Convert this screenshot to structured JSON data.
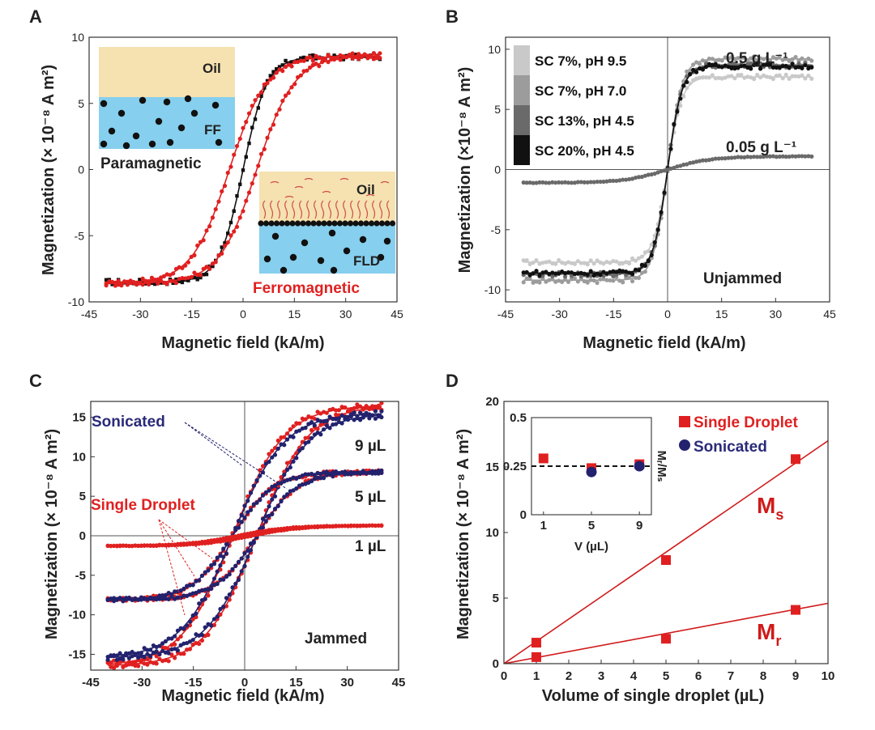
{
  "panels": {
    "A": {
      "label": "A",
      "ylabel": "Magnetization (× 10⁻⁸ A m²)",
      "xlabel": "Magnetic field (kA/m)",
      "inset_top": {
        "oil": "Oil",
        "ff": "FF",
        "caption": "Paramagnetic"
      },
      "inset_bottom": {
        "oil": "Oil",
        "fld": "FLD",
        "caption": "Ferromagnetic"
      }
    },
    "B": {
      "label": "B",
      "ylabel": "Magnetization (×10⁻⁸ A m²)",
      "xlabel": "Magnetic field (kA/m)",
      "legend": [
        "SC 7%, pH 9.5",
        "SC 7%, pH 7.0",
        "SC 13%, pH 4.5",
        "SC 20%, pH 4.5"
      ],
      "ann_high": "0.5 g L⁻¹",
      "ann_low": "0.05 g L⁻¹",
      "state": "Unjammed"
    },
    "C": {
      "label": "C",
      "ylabel": "Magnetization (× 10⁻⁸ A m²)",
      "xlabel": "Magnetic field (kA/m)",
      "sonicated": "Sonicated",
      "single": "Single Droplet",
      "v9": "9 µL",
      "v5": "5 µL",
      "v1": "1 µL",
      "state": "Jammed"
    },
    "D": {
      "label": "D",
      "ylabel": "Magnetization (× 10⁻⁸ A m²)",
      "xlabel": "Volume of single droplet (µL)",
      "legend_single": "Single Droplet",
      "legend_sonicated": "Sonicated",
      "ms_label": "M",
      "ms_sub": "s",
      "mr_label": "M",
      "mr_sub": "r",
      "inset_xlabel": "V (µL)",
      "inset_ylabel": "Mᵣ/Mₛ"
    }
  },
  "colors": {
    "red": "#e02020",
    "black": "#111111",
    "navy": "#22226e",
    "light": "#c9c9c9",
    "mid": "#9c9c9c",
    "dark": "#6a6a6a",
    "oil": "#f5e2b0",
    "water": "#86cfee"
  },
  "chart_data": [
    {
      "panel": "A",
      "type": "line",
      "title": "",
      "xlabel": "Magnetic field (kA/m)",
      "ylabel": "Magnetization (× 10⁻⁸ A m²)",
      "xlim": [
        -45,
        45
      ],
      "ylim": [
        -10,
        10
      ],
      "xticks": [
        -45,
        -30,
        -15,
        0,
        15,
        30,
        45
      ],
      "yticks": [
        -10,
        -5,
        0,
        5,
        10
      ],
      "series": [
        {
          "name": "FF (paramagnetic)",
          "color": "#111111",
          "Ms": 8.5,
          "width": 7,
          "coercive": 0
        },
        {
          "name": "FLD (ferromagnetic)",
          "color": "#e02020",
          "Ms": 8.6,
          "width": 11,
          "coercive": 4
        }
      ]
    },
    {
      "panel": "B",
      "type": "line",
      "xlabel": "Magnetic field (kA/m)",
      "ylabel": "Magnetization (×10⁻⁸ A m²)",
      "xlim": [
        -45,
        45
      ],
      "ylim": [
        -11,
        11
      ],
      "xticks": [
        -45,
        -30,
        -15,
        0,
        15,
        30,
        45
      ],
      "yticks": [
        -10,
        -5,
        0,
        5,
        10
      ],
      "series": [
        {
          "name": "SC 7%, pH 9.5",
          "color": "#c9c9c9",
          "Ms": 7.7,
          "width": 4
        },
        {
          "name": "SC 7%, pH 7.0",
          "color": "#9c9c9c",
          "Ms": 9.2,
          "width": 4
        },
        {
          "name": "SC 13%, pH 4.5",
          "color": "#6a6a6a",
          "Ms": 8.7,
          "width": 4
        },
        {
          "name": "SC 20%, pH 4.5",
          "color": "#111111",
          "Ms": 8.6,
          "width": 4
        },
        {
          "name": "0.05 g L⁻¹",
          "color": "#6a6a6a",
          "Ms": 1.1,
          "width": 12
        }
      ]
    },
    {
      "panel": "C",
      "type": "line",
      "xlabel": "Magnetic field (kA/m)",
      "ylabel": "Magnetization (× 10⁻⁸ A m²)",
      "xlim": [
        -45,
        45
      ],
      "ylim": [
        -17,
        17
      ],
      "xticks": [
        -45,
        -30,
        -15,
        0,
        15,
        30,
        45
      ],
      "yticks": [
        -15,
        -10,
        -5,
        0,
        5,
        10,
        15
      ],
      "series": [
        {
          "name": "Single Droplet 9 µL",
          "color": "#e02020",
          "Ms": 16.5,
          "width": 15,
          "coercive": 3.5
        },
        {
          "name": "Sonicated 9 µL",
          "color": "#22226e",
          "Ms": 15.5,
          "width": 15,
          "coercive": 3.5
        },
        {
          "name": "Single Droplet 5 µL",
          "color": "#e02020",
          "Ms": 8.1,
          "width": 12,
          "coercive": 3.5
        },
        {
          "name": "Sonicated 5 µL",
          "color": "#22226e",
          "Ms": 8.1,
          "width": 12,
          "coercive": 3.5
        },
        {
          "name": "Single Droplet 1 µL",
          "color": "#e02020",
          "Ms": 1.3,
          "width": 15,
          "coercive": 2
        }
      ]
    },
    {
      "panel": "D",
      "type": "scatter",
      "xlabel": "Volume of single droplet (µL)",
      "ylabel": "Magnetization (× 10⁻⁸ A m²)",
      "xlim": [
        0,
        10
      ],
      "ylim": [
        0,
        20
      ],
      "xticks": [
        0,
        1,
        2,
        3,
        4,
        5,
        6,
        7,
        8,
        9,
        10
      ],
      "yticks": [
        0,
        5,
        10,
        15,
        20
      ],
      "series": [
        {
          "name": "Ms",
          "x": [
            1,
            5,
            9
          ],
          "y": [
            1.6,
            7.9,
            15.6
          ],
          "fit_slope": 1.7
        },
        {
          "name": "Mr",
          "x": [
            1,
            5,
            9
          ],
          "y": [
            0.5,
            1.9,
            4.1
          ],
          "fit_slope": 0.46
        }
      ],
      "inset": {
        "xlim": [
          0,
          10
        ],
        "ylim": [
          0,
          0.5
        ],
        "xticks": [
          1,
          5,
          9
        ],
        "yticks": [
          0,
          0.25,
          0.5
        ],
        "reference": 0.25,
        "single_droplet": {
          "x": [
            1,
            5,
            9
          ],
          "y": [
            0.29,
            0.24,
            0.26
          ]
        },
        "sonicated": {
          "x": [
            5,
            9
          ],
          "y": [
            0.22,
            0.25
          ]
        }
      }
    }
  ]
}
